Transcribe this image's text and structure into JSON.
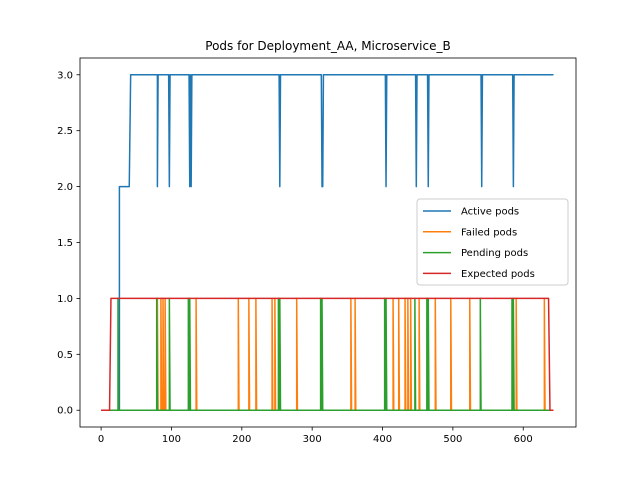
{
  "chart_data": {
    "type": "line",
    "title": "Pods for Deployment_AA, Microservice_B",
    "xlabel": "",
    "ylabel": "",
    "xlim": [
      -30,
      675
    ],
    "ylim": [
      -0.15,
      3.15
    ],
    "x_ticks": [
      0,
      100,
      200,
      300,
      400,
      500,
      600
    ],
    "y_ticks": [
      0.0,
      0.5,
      1.0,
      1.5,
      2.0,
      2.5,
      3.0
    ],
    "x_tick_labels": [
      "0",
      "100",
      "200",
      "300",
      "400",
      "500",
      "600"
    ],
    "y_tick_labels": [
      "0.0",
      "0.5",
      "1.0",
      "1.5",
      "2.0",
      "2.5",
      "3.0"
    ],
    "grid": false,
    "legend_position": "center-right",
    "series": [
      {
        "name": "Active pods",
        "color": "#1f77b4",
        "points": [
          [
            0,
            0
          ],
          [
            12,
            0
          ],
          [
            26,
            0
          ],
          [
            26,
            2
          ],
          [
            40,
            2
          ],
          [
            42,
            3
          ],
          [
            80,
            3
          ],
          [
            80,
            2
          ],
          [
            81,
            3
          ],
          [
            96,
            3
          ],
          [
            97,
            2
          ],
          [
            98,
            3
          ],
          [
            125,
            3
          ],
          [
            126,
            2
          ],
          [
            127,
            3
          ],
          [
            128,
            2
          ],
          [
            129,
            3
          ],
          [
            253,
            3
          ],
          [
            254,
            2
          ],
          [
            255,
            3
          ],
          [
            313,
            3
          ],
          [
            314,
            2
          ],
          [
            315,
            2
          ],
          [
            316,
            3
          ],
          [
            404,
            3
          ],
          [
            405,
            2
          ],
          [
            406,
            3
          ],
          [
            447,
            3
          ],
          [
            448,
            2
          ],
          [
            449,
            3
          ],
          [
            464,
            3
          ],
          [
            465,
            2
          ],
          [
            466,
            3
          ],
          [
            540,
            3
          ],
          [
            541,
            2
          ],
          [
            542,
            3
          ],
          [
            585,
            3
          ],
          [
            586,
            2
          ],
          [
            587,
            3
          ],
          [
            643,
            3
          ]
        ]
      },
      {
        "name": "Failed pods",
        "color": "#ff7f0e",
        "points": [
          [
            0,
            0
          ],
          [
            80,
            0
          ],
          [
            80,
            1
          ],
          [
            81,
            0
          ],
          [
            85,
            0
          ],
          [
            85,
            1
          ],
          [
            86,
            0
          ],
          [
            88,
            0
          ],
          [
            88,
            1
          ],
          [
            89,
            0
          ],
          [
            91,
            0
          ],
          [
            91,
            1
          ],
          [
            92,
            0
          ],
          [
            135,
            0
          ],
          [
            135,
            1
          ],
          [
            136,
            0
          ],
          [
            195,
            0
          ],
          [
            195,
            1
          ],
          [
            196,
            0
          ],
          [
            210,
            0
          ],
          [
            210,
            1
          ],
          [
            211,
            0
          ],
          [
            220,
            0
          ],
          [
            220,
            1
          ],
          [
            221,
            0
          ],
          [
            243,
            0
          ],
          [
            243,
            1
          ],
          [
            244,
            0
          ],
          [
            247,
            0
          ],
          [
            247,
            1
          ],
          [
            248,
            0
          ],
          [
            278,
            0
          ],
          [
            278,
            1
          ],
          [
            279,
            0
          ],
          [
            355,
            0
          ],
          [
            355,
            1
          ],
          [
            356,
            0
          ],
          [
            361,
            0
          ],
          [
            361,
            1
          ],
          [
            362,
            0
          ],
          [
            415,
            0
          ],
          [
            415,
            1
          ],
          [
            416,
            0
          ],
          [
            423,
            0
          ],
          [
            423,
            1
          ],
          [
            424,
            0
          ],
          [
            432,
            0
          ],
          [
            432,
            1
          ],
          [
            433,
            0
          ],
          [
            436,
            0
          ],
          [
            436,
            1
          ],
          [
            437,
            0
          ],
          [
            440,
            0
          ],
          [
            440,
            1
          ],
          [
            441,
            0
          ],
          [
            452,
            0
          ],
          [
            452,
            1
          ],
          [
            453,
            0
          ],
          [
            475,
            0
          ],
          [
            475,
            1
          ],
          [
            476,
            0
          ],
          [
            497,
            0
          ],
          [
            497,
            1
          ],
          [
            498,
            0
          ],
          [
            524,
            0
          ],
          [
            524,
            1
          ],
          [
            525,
            0
          ],
          [
            590,
            0
          ],
          [
            590,
            1
          ],
          [
            591,
            0
          ],
          [
            630,
            0
          ],
          [
            630,
            1
          ],
          [
            631,
            0
          ],
          [
            643,
            0
          ]
        ]
      },
      {
        "name": "Pending pods",
        "color": "#2ca02c",
        "points": [
          [
            0,
            0
          ],
          [
            24,
            0
          ],
          [
            24,
            1
          ],
          [
            25,
            0
          ],
          [
            79,
            0
          ],
          [
            79,
            1
          ],
          [
            80,
            0
          ],
          [
            97,
            0
          ],
          [
            97,
            1
          ],
          [
            98,
            0
          ],
          [
            124,
            0
          ],
          [
            124,
            1
          ],
          [
            125,
            0
          ],
          [
            126,
            0
          ],
          [
            126,
            1
          ],
          [
            127,
            0
          ],
          [
            252,
            0
          ],
          [
            252,
            1
          ],
          [
            253,
            0
          ],
          [
            254,
            0
          ],
          [
            254,
            1
          ],
          [
            255,
            0
          ],
          [
            312,
            0
          ],
          [
            312,
            1
          ],
          [
            313,
            0
          ],
          [
            314,
            0
          ],
          [
            314,
            1
          ],
          [
            315,
            0
          ],
          [
            403,
            0
          ],
          [
            403,
            1
          ],
          [
            404,
            0
          ],
          [
            405,
            0
          ],
          [
            405,
            1
          ],
          [
            406,
            0
          ],
          [
            446,
            0
          ],
          [
            446,
            1
          ],
          [
            447,
            0
          ],
          [
            463,
            0
          ],
          [
            463,
            1
          ],
          [
            464,
            0
          ],
          [
            465,
            0
          ],
          [
            465,
            1
          ],
          [
            466,
            0
          ],
          [
            539,
            0
          ],
          [
            539,
            1
          ],
          [
            540,
            0
          ],
          [
            584,
            0
          ],
          [
            584,
            1
          ],
          [
            585,
            0
          ],
          [
            586,
            0
          ],
          [
            586,
            1
          ],
          [
            587,
            0
          ],
          [
            643,
            0
          ]
        ]
      },
      {
        "name": "Expected pods",
        "color": "#d62728",
        "points": [
          [
            0,
            0
          ],
          [
            12,
            0
          ],
          [
            14,
            1
          ],
          [
            636,
            1
          ],
          [
            638,
            0
          ],
          [
            643,
            0
          ]
        ]
      }
    ]
  }
}
